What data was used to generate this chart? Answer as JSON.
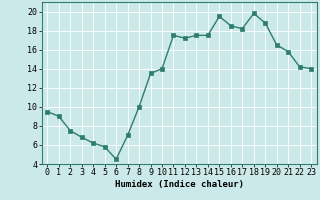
{
  "x": [
    0,
    1,
    2,
    3,
    4,
    5,
    6,
    7,
    8,
    9,
    10,
    11,
    12,
    13,
    14,
    15,
    16,
    17,
    18,
    19,
    20,
    21,
    22,
    23
  ],
  "y": [
    9.5,
    9.0,
    7.5,
    6.8,
    6.2,
    5.8,
    4.5,
    7.0,
    10.0,
    13.5,
    14.0,
    17.5,
    17.2,
    17.5,
    17.5,
    19.5,
    18.5,
    18.2,
    19.8,
    18.8,
    16.5,
    15.8,
    14.2,
    14.0
  ],
  "line_color": "#2e7d6e",
  "marker": "s",
  "markersize": 2.5,
  "linewidth": 1.0,
  "bg_color": "#cce9e9",
  "grid_color": "#ffffff",
  "grid_linewidth": 0.6,
  "xlabel": "Humidex (Indice chaleur)",
  "xlim": [
    -0.5,
    23.5
  ],
  "ylim": [
    4,
    21
  ],
  "yticks": [
    4,
    6,
    8,
    10,
    12,
    14,
    16,
    18,
    20
  ],
  "xticks": [
    0,
    1,
    2,
    3,
    4,
    5,
    6,
    7,
    8,
    9,
    10,
    11,
    12,
    13,
    14,
    15,
    16,
    17,
    18,
    19,
    20,
    21,
    22,
    23
  ],
  "xlabel_fontsize": 6.5,
  "tick_fontsize": 6
}
